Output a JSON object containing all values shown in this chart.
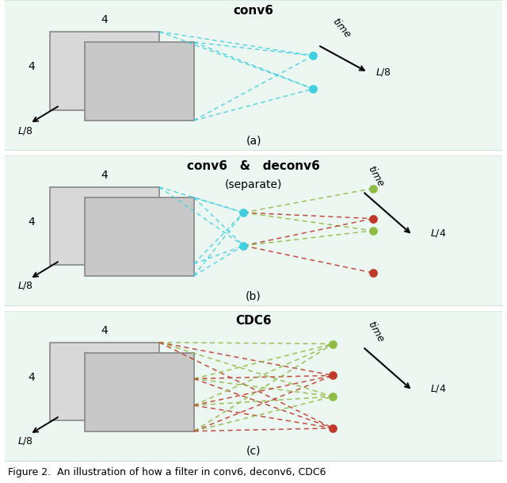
{
  "bg_color": "#edf7f2",
  "figsize": [
    6.4,
    6.09
  ],
  "fig_caption": "Figure 2.  An illustration of how a filter in conv6, deconv6, CDC6",
  "panels": [
    {
      "id": "a",
      "title": "conv6",
      "subtitle": null,
      "label": "(a)",
      "cyan": "#3ecfe0",
      "green": "#8fbc45",
      "red": "#c0392b"
    },
    {
      "id": "b",
      "title": "conv6   &   deconv6",
      "subtitle": "(separate)",
      "label": "(b)",
      "cyan": "#3ecfe0",
      "green": "#8fbc45",
      "red": "#c0392b"
    },
    {
      "id": "c",
      "title": "CDC6",
      "subtitle": null,
      "label": "(c)",
      "cyan": "#3ecfe0",
      "green": "#8fbc45",
      "red": "#c0392b"
    }
  ]
}
